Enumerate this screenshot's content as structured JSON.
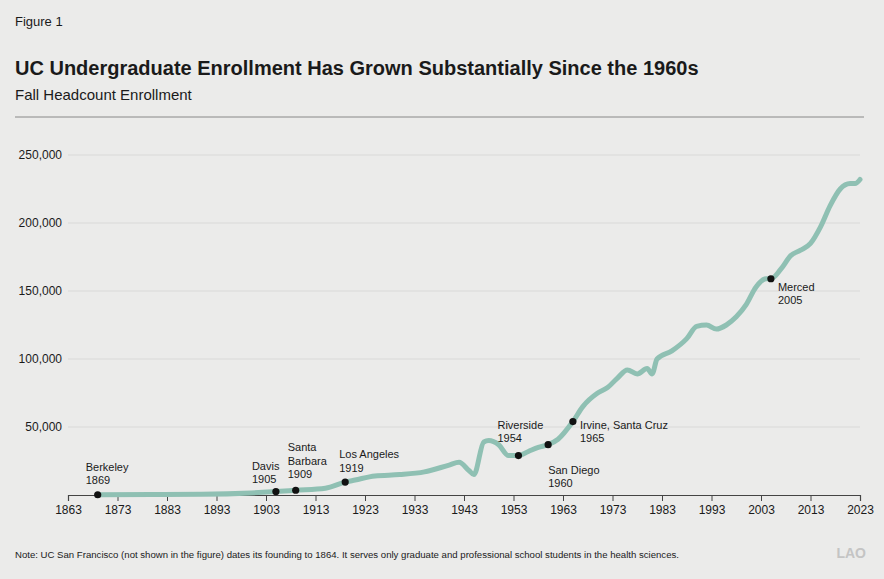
{
  "chart_data": {
    "type": "line",
    "figure_label": "Figure 1",
    "title": "UC Undergraduate Enrollment Has Grown Substantially Since the 1960s",
    "subtitle": "Fall Headcount Enrollment",
    "note": "Note: UC San Francisco (not shown in the figure) dates its founding to 1864. It serves only graduate and professional school students in the health sciences.",
    "logo": "LAO",
    "color": "#8fc0b3",
    "grid": true,
    "xlim": [
      1863,
      2023
    ],
    "xticks": [
      1863,
      1873,
      1883,
      1893,
      1903,
      1913,
      1923,
      1933,
      1943,
      1953,
      1963,
      1973,
      1983,
      1993,
      2003,
      2013,
      2023
    ],
    "ylim": [
      0,
      250000
    ],
    "yticks": [
      {
        "value": 50000,
        "label": "50,000"
      },
      {
        "value": 100000,
        "label": "100,000"
      },
      {
        "value": 150000,
        "label": "150,000"
      },
      {
        "value": 200000,
        "label": "200,000"
      },
      {
        "value": 250000,
        "label": "250,000"
      }
    ],
    "x": [
      1869,
      1880,
      1890,
      1900,
      1905,
      1909,
      1915,
      1919,
      1921,
      1925,
      1930,
      1935,
      1940,
      1942,
      1944,
      1945,
      1947,
      1948,
      1950,
      1952,
      1954,
      1956,
      1958,
      1960,
      1962,
      1965,
      1967,
      1970,
      1972,
      1974,
      1976,
      1978,
      1980,
      1981,
      1982,
      1985,
      1988,
      1990,
      1992,
      1994,
      1996,
      1998,
      2000,
      2002,
      2004,
      2005,
      2007,
      2009,
      2011,
      2013,
      2015,
      2017,
      2019,
      2021,
      2022,
      2023
    ],
    "values": [
      200,
      300,
      500,
      1500,
      2500,
      3500,
      5000,
      9500,
      11000,
      14000,
      15000,
      17000,
      22000,
      24000,
      18000,
      15000,
      39000,
      40000,
      37000,
      29000,
      29000,
      32000,
      35000,
      37000,
      41000,
      54000,
      65000,
      75000,
      79000,
      86000,
      92000,
      89000,
      93000,
      89000,
      100000,
      106000,
      115000,
      124000,
      125000,
      122000,
      125000,
      131000,
      140000,
      153000,
      159000,
      159000,
      166000,
      176000,
      180000,
      185000,
      197000,
      213000,
      225000,
      229000,
      229000,
      232000
    ],
    "annotations": [
      {
        "x": 1869,
        "y": 200,
        "label": [
          "Berkeley",
          "1869"
        ]
      },
      {
        "x": 1905,
        "y": 2500,
        "label": [
          "Davis",
          "1905"
        ]
      },
      {
        "x": 1909,
        "y": 3500,
        "label": [
          "Santa",
          "Barbara",
          "1909"
        ]
      },
      {
        "x": 1919,
        "y": 9500,
        "label": [
          "Los Angeles",
          "1919"
        ]
      },
      {
        "x": 1954,
        "y": 29000,
        "label": [
          "Riverside",
          "1954"
        ]
      },
      {
        "x": 1960,
        "y": 37000,
        "label": [
          "San Diego",
          "1960"
        ]
      },
      {
        "x": 1965,
        "y": 54000,
        "label": [
          "Irvine, Santa Cruz",
          "1965"
        ]
      },
      {
        "x": 2005,
        "y": 159000,
        "label": [
          "Merced",
          "2005"
        ]
      }
    ]
  }
}
